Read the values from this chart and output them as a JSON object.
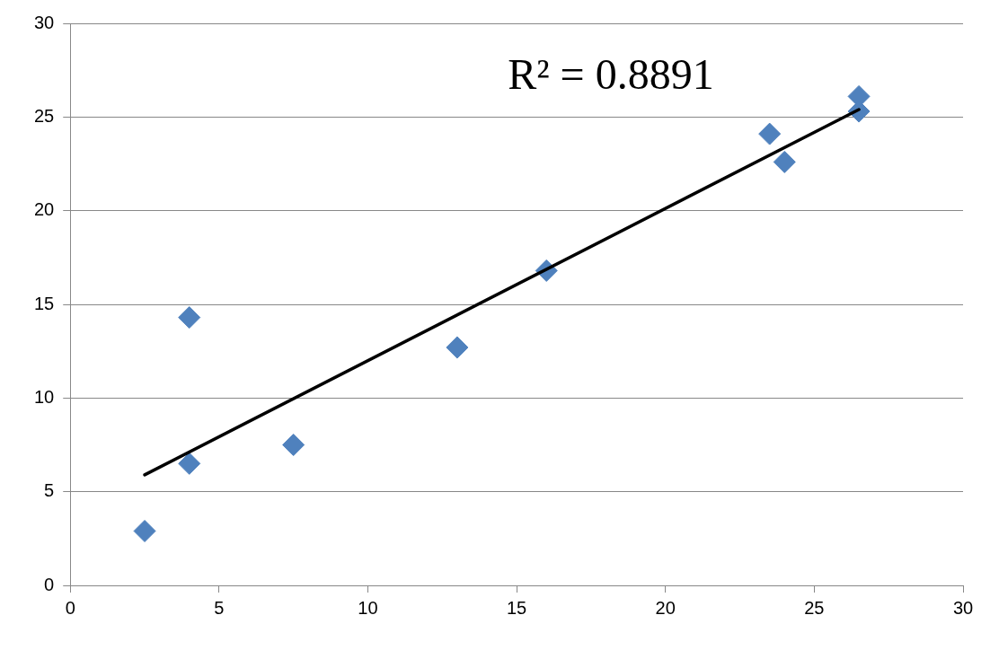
{
  "chart_data": {
    "type": "scatter",
    "annotations": [
      "R² = 0.8891"
    ],
    "xlim": [
      0,
      30
    ],
    "xticks": [
      0,
      5,
      10,
      15,
      20,
      25,
      30
    ],
    "ylim": [
      0,
      30
    ],
    "yticks": [
      0,
      5,
      10,
      15,
      20,
      25,
      30
    ],
    "grid": "y",
    "legend": false,
    "marker": "diamond",
    "series": [
      {
        "color": "#4f81bd",
        "x": [
          2.5,
          4,
          4,
          7.5,
          13,
          16,
          23.5,
          24,
          26.5,
          26.5
        ],
        "values": [
          2.9,
          6.5,
          14.3,
          7.5,
          12.7,
          16.8,
          24.1,
          22.6,
          26.1,
          25.3
        ]
      },
      {
        "type": "line",
        "color": "#000000",
        "marker": "none",
        "x": [
          2.5,
          26.5
        ],
        "values": [
          5.9,
          25.4
        ]
      }
    ]
  }
}
